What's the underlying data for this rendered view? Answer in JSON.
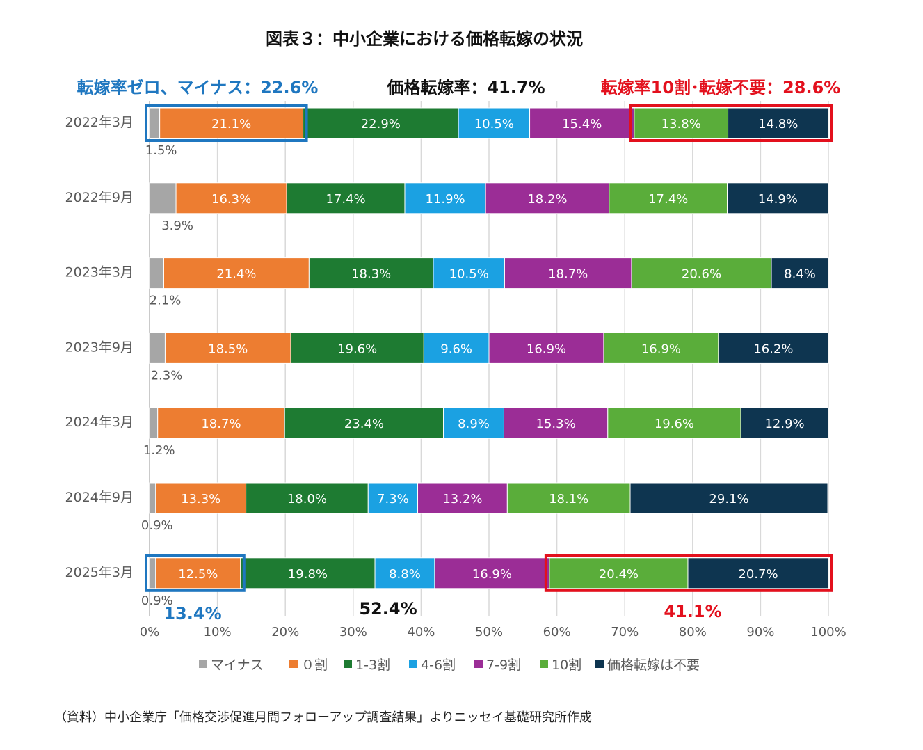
{
  "chart_data": {
    "type": "bar",
    "orientation": "horizontal",
    "stacked": true,
    "title": "図表３：中小企業における価格転嫁の状況",
    "categories": [
      "2022年3月",
      "2022年9月",
      "2023年3月",
      "2023年9月",
      "2024年3月",
      "2024年9月",
      "2025年3月"
    ],
    "series": [
      {
        "name": "マイナス",
        "color": "#a6a6a6",
        "values": [
          1.5,
          3.9,
          2.1,
          2.3,
          1.2,
          0.9,
          0.9
        ]
      },
      {
        "name": "０割",
        "color": "#ed7d31",
        "values": [
          21.1,
          16.3,
          21.4,
          18.5,
          18.7,
          13.3,
          12.5
        ]
      },
      {
        "name": "1-3割",
        "color": "#1e7b32",
        "values": [
          22.9,
          17.4,
          18.3,
          19.6,
          23.4,
          18.0,
          19.8
        ]
      },
      {
        "name": "4-6割",
        "color": "#1ba1e2",
        "values": [
          10.5,
          11.9,
          10.5,
          9.6,
          8.9,
          7.3,
          8.8
        ]
      },
      {
        "name": "7-9割",
        "color": "#9b2d96",
        "values": [
          15.4,
          18.2,
          18.7,
          16.9,
          15.3,
          13.2,
          16.9
        ]
      },
      {
        "name": "10割",
        "color": "#5aad3a",
        "values": [
          13.8,
          17.4,
          20.6,
          16.9,
          19.6,
          18.1,
          20.4
        ]
      },
      {
        "name": "価格転嫁は不要",
        "color": "#0e3550",
        "values": [
          14.8,
          14.9,
          8.4,
          16.2,
          12.9,
          29.1,
          20.7
        ]
      }
    ],
    "xlim": [
      0,
      100
    ],
    "x_ticks": [
      "0%",
      "10%",
      "20%",
      "30%",
      "40%",
      "50%",
      "60%",
      "70%",
      "80%",
      "90%",
      "100%"
    ],
    "grid": "vertical",
    "legend_position": "bottom",
    "annotations": {
      "top_blue": "転嫁率ゼロ、マイナス：22.6%",
      "top_black": "価格転嫁率：41.7%",
      "top_red": "転嫁率10割･転嫁不要：28.6%",
      "bottom_blue": "13.4%",
      "bottom_black": "52.4%",
      "bottom_red": "41.1%"
    }
  },
  "source_note": "（資料）中小企業庁「価格交渉促進月間フォローアップ調査結果」よりニッセイ基礎研究所作成"
}
